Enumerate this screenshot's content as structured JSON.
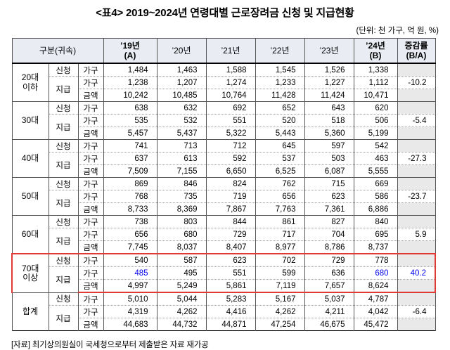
{
  "title": "<표4> 2019~2024년 연령대별 근로장려금 신청 및 지급현황",
  "unit_note": "(단위: 천 가구, 억 원, %)",
  "source_note": "[자료] 최기상의원실이 국세청으로부터 제출받은 자료 재가공",
  "colors": {
    "header_bg": "#eaecf4",
    "rate_blank_bg": "#e9e9e9",
    "highlight_border": "#e03a36",
    "accent_text": "#0404f0"
  },
  "table": {
    "header": {
      "group_col": "구분(귀속)",
      "cols": [
        {
          "id": "year-19",
          "line1": "’19년",
          "line2": "(A)",
          "bold": true
        },
        {
          "id": "year-20",
          "line1": "’20년",
          "line2": "",
          "bold": false
        },
        {
          "id": "year-21",
          "line1": "’21년",
          "line2": "",
          "bold": false
        },
        {
          "id": "year-22",
          "line1": "’22년",
          "line2": "",
          "bold": false
        },
        {
          "id": "year-23",
          "line1": "’23년",
          "line2": "",
          "bold": false
        },
        {
          "id": "year-24",
          "line1": "’24년",
          "line2": "(B)",
          "bold": true
        },
        {
          "id": "change-rate",
          "line1": "증감률",
          "line2": "(B/A)",
          "bold": true
        }
      ]
    },
    "row_labels": {
      "apply": "신청",
      "pay": "지급",
      "household": "가구",
      "amount": "금액"
    },
    "groups": [
      {
        "id": "20s-under",
        "age": "20대 이하",
        "highlight": false,
        "apply_household": [
          "1,484",
          "1,463",
          "1,588",
          "1,545",
          "1,526",
          "1,338"
        ],
        "pay_household": [
          "1,238",
          "1,207",
          "1,274",
          "1,233",
          "1,227",
          "1,112"
        ],
        "pay_amount": [
          "10,242",
          "10,485",
          "10,764",
          "11,428",
          "11,424",
          "10,471"
        ],
        "rate": "-10.2",
        "rate_blue": false,
        "blue_indices": []
      },
      {
        "id": "30s",
        "age": "30대",
        "highlight": false,
        "apply_household": [
          "638",
          "632",
          "692",
          "652",
          "643",
          "620"
        ],
        "pay_household": [
          "535",
          "532",
          "551",
          "520",
          "518",
          "506"
        ],
        "pay_amount": [
          "5,457",
          "5,437",
          "5,322",
          "5,443",
          "5,360",
          "5,199"
        ],
        "rate": "-5.4",
        "rate_blue": false,
        "blue_indices": []
      },
      {
        "id": "40s",
        "age": "40대",
        "highlight": false,
        "apply_household": [
          "741",
          "713",
          "712",
          "645",
          "597",
          "542"
        ],
        "pay_household": [
          "637",
          "613",
          "592",
          "537",
          "503",
          "463"
        ],
        "pay_amount": [
          "7,509",
          "7,155",
          "6,650",
          "6,525",
          "6,087",
          "5,555"
        ],
        "rate": "-27.3",
        "rate_blue": false,
        "blue_indices": []
      },
      {
        "id": "50s",
        "age": "50대",
        "highlight": false,
        "apply_household": [
          "869",
          "846",
          "824",
          "762",
          "715",
          "669"
        ],
        "pay_household": [
          "768",
          "735",
          "719",
          "656",
          "623",
          "586"
        ],
        "pay_amount": [
          "8,733",
          "8,369",
          "7,867",
          "7,763",
          "7,361",
          "6,886"
        ],
        "rate": "-23.7",
        "rate_blue": false,
        "blue_indices": []
      },
      {
        "id": "60s",
        "age": "60대",
        "highlight": false,
        "apply_household": [
          "738",
          "803",
          "844",
          "861",
          "827",
          "840"
        ],
        "pay_household": [
          "656",
          "680",
          "729",
          "717",
          "704",
          "695"
        ],
        "pay_amount": [
          "7,745",
          "8,037",
          "8,407",
          "8,977",
          "8,786",
          "8,737"
        ],
        "rate": "5.9",
        "rate_blue": false,
        "blue_indices": []
      },
      {
        "id": "70s-over",
        "age": "70대 이상",
        "highlight": true,
        "apply_household": [
          "540",
          "587",
          "623",
          "702",
          "729",
          "778"
        ],
        "pay_household": [
          "485",
          "495",
          "551",
          "599",
          "636",
          "680"
        ],
        "pay_amount": [
          "4,997",
          "5,249",
          "5,861",
          "7,119",
          "7,657",
          "8,624"
        ],
        "rate": "40.2",
        "rate_blue": true,
        "blue_indices": [
          0,
          5
        ]
      },
      {
        "id": "total",
        "age": "합계",
        "highlight": false,
        "apply_household": [
          "5,010",
          "5,044",
          "5,283",
          "5,167",
          "5,037",
          "4,787"
        ],
        "pay_household": [
          "4,319",
          "4,262",
          "4,416",
          "4,262",
          "4,211",
          "4,042"
        ],
        "pay_amount": [
          "44,683",
          "44,732",
          "44,871",
          "47,254",
          "46,675",
          "45,472"
        ],
        "rate": "-6.4",
        "rate_blue": false,
        "blue_indices": []
      }
    ]
  }
}
